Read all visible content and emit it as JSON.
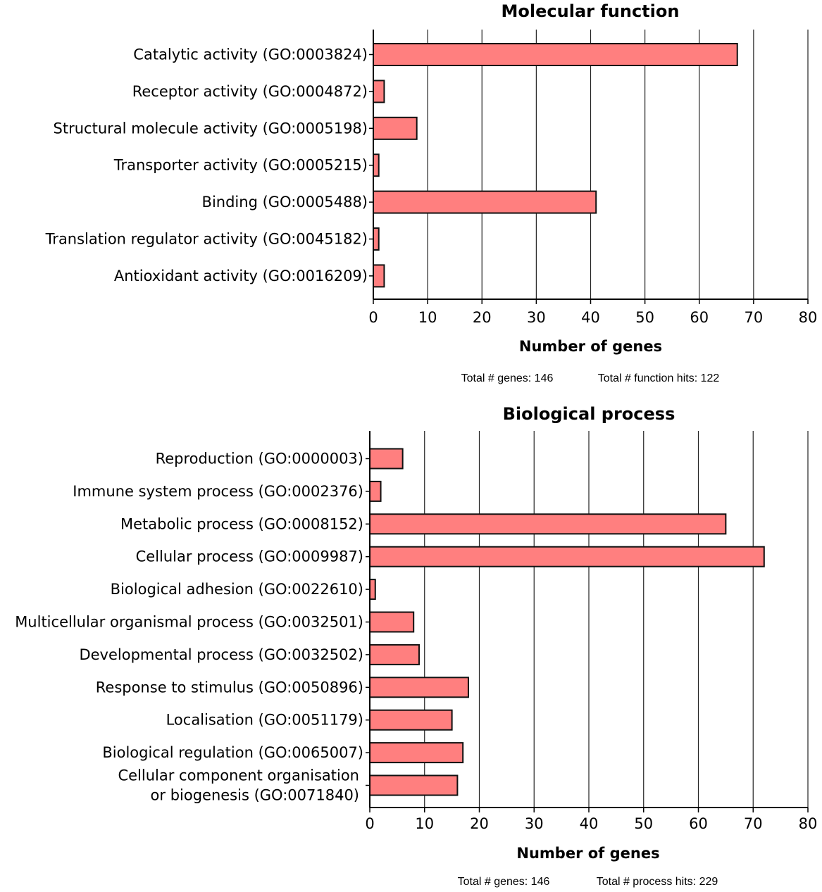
{
  "chart_data": [
    {
      "type": "bar",
      "orientation": "horizontal",
      "title": "Molecular  function",
      "xlabel": "Number of genes",
      "xlim": [
        0,
        80
      ],
      "xticks": [
        0,
        10,
        20,
        30,
        40,
        50,
        60,
        70,
        80
      ],
      "grid": "vertical",
      "bar_color": "#ff7f7f",
      "categories": [
        [
          "Catalytic activity (GO:0003824)"
        ],
        [
          "Receptor activity (GO:0004872)"
        ],
        [
          "Structural molecule activity (GO:0005198)"
        ],
        [
          "Transporter activity (GO:0005215)"
        ],
        [
          "Binding (GO:0005488)"
        ],
        [
          "Translation regulator activity (GO:0045182)"
        ],
        [
          "Antioxidant activity (GO:0016209)"
        ]
      ],
      "values": [
        67,
        2,
        8,
        1,
        41,
        1,
        2
      ],
      "footer": {
        "total_genes": "Total # genes: 146",
        "total_hits": "Total # function hits: 122"
      }
    },
    {
      "type": "bar",
      "orientation": "horizontal",
      "title": "Biological process",
      "xlabel": "Number of genes",
      "xlim": [
        0,
        80
      ],
      "xticks": [
        0,
        10,
        20,
        30,
        40,
        50,
        60,
        70,
        80
      ],
      "grid": "vertical",
      "bar_color": "#ff7f7f",
      "categories": [
        [
          "Reproduction (GO:0000003)"
        ],
        [
          "Immune system process (GO:0002376)"
        ],
        [
          "Metabolic process (GO:0008152)"
        ],
        [
          "Cellular process (GO:0009987)"
        ],
        [
          "Biological adhesion (GO:0022610)"
        ],
        [
          "Multicellular organismal process (GO:0032501)"
        ],
        [
          "Developmental process (GO:0032502)"
        ],
        [
          "Response to stimulus (GO:0050896)"
        ],
        [
          "Localisation (GO:0051179)"
        ],
        [
          "Biological regulation (GO:0065007)"
        ],
        [
          "Cellular component organisation",
          "or biogenesis (GO:0071840)"
        ]
      ],
      "values": [
        6,
        2,
        65,
        72,
        1,
        8,
        9,
        18,
        15,
        17,
        16
      ],
      "footer": {
        "total_genes": "Total # genes: 146",
        "total_hits": "Total # process hits: 229"
      }
    }
  ]
}
